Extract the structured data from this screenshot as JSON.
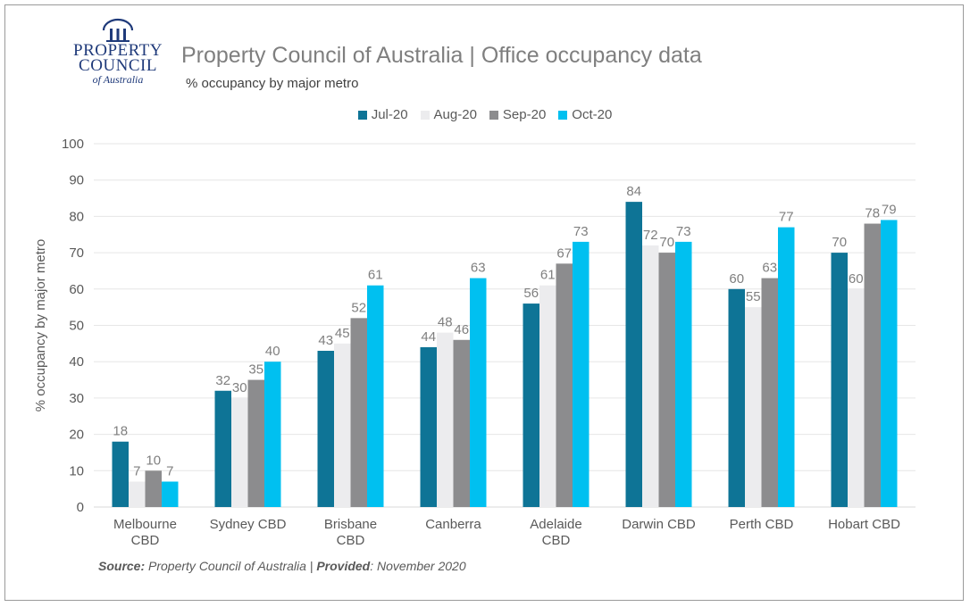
{
  "logo": {
    "line1": "PROPERTY",
    "line2": "COUNCIL",
    "line3": "of Australia",
    "color": "#1f3a7a"
  },
  "header": {
    "title": "Property Council of Australia | Office occupancy data",
    "subtitle": "% occupancy by major metro"
  },
  "source": {
    "label": "Source:",
    "text": " Property Council of Australia | ",
    "provided_label": "Provided",
    "provided_text": ": November 2020"
  },
  "chart_data": {
    "type": "bar",
    "title": "",
    "ylabel": "% occupancy by major metro",
    "xlabel": "",
    "ylim": [
      0,
      100
    ],
    "yticks": [
      0,
      10,
      20,
      30,
      40,
      50,
      60,
      70,
      80,
      90,
      100
    ],
    "grid": true,
    "legend_position": "top",
    "categories": [
      [
        "Melbourne",
        "CBD"
      ],
      [
        "Sydney CBD"
      ],
      [
        "Brisbane",
        "CBD"
      ],
      [
        "Canberra"
      ],
      [
        "Adelaide",
        "CBD"
      ],
      [
        "Darwin CBD"
      ],
      [
        "Perth CBD"
      ],
      [
        "Hobart CBD"
      ]
    ],
    "series": [
      {
        "name": "Jul-20",
        "color": "#0e7496",
        "values": [
          18,
          32,
          43,
          44,
          56,
          84,
          60,
          70
        ]
      },
      {
        "name": "Aug-20",
        "color": "#ececee",
        "values": [
          7,
          30,
          45,
          48,
          61,
          72,
          55,
          60
        ]
      },
      {
        "name": "Sep-20",
        "color": "#8c8c8e",
        "values": [
          10,
          35,
          52,
          46,
          67,
          70,
          63,
          78
        ]
      },
      {
        "name": "Oct-20",
        "color": "#00c0f0",
        "values": [
          7,
          40,
          61,
          63,
          73,
          73,
          77,
          79
        ]
      }
    ]
  }
}
